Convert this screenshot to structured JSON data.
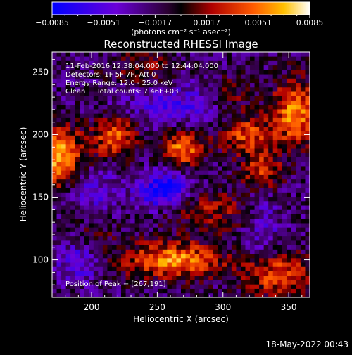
{
  "chart_data": {
    "type": "heatmap",
    "title": "Reconstructed RHESSI Image",
    "xlabel": "Heliocentric X (arcsec)",
    "ylabel": "Heliocentric Y (arcsec)",
    "xlim": [
      170,
      366
    ],
    "ylim": [
      70,
      266
    ],
    "x_ticks": [
      200,
      250,
      300,
      350
    ],
    "y_ticks": [
      100,
      150,
      200,
      250
    ],
    "colorbar": {
      "range": [
        -0.0085,
        0.0085
      ],
      "ticks": [
        "−0.0085",
        "−0.0051",
        "−0.0017",
        "0.0017",
        "0.0051",
        "0.0085"
      ],
      "unit_label": "(photons cm⁻² s⁻¹ asec⁻²)"
    },
    "info_lines": [
      "11-Feb-2016 12:38:04.000 to 12:44:04.000",
      "Detectors: 1F 5F 7F, Att 0",
      "Energy Range: 12.0 - 25.0 keV",
      "Clean     Total counts: 7.46E+03"
    ],
    "peak_label": "Position of Peak = [267,191]",
    "timestamp": "18-May-2022 00:43",
    "grid": false,
    "sources": [
      {
        "x": 175,
        "y": 182,
        "amp": 0.0085,
        "sx": 14,
        "sy": 16
      },
      {
        "x": 218,
        "y": 198,
        "amp": 0.0065,
        "sx": 12,
        "sy": 12
      },
      {
        "x": 270,
        "y": 190,
        "amp": 0.007,
        "sx": 11,
        "sy": 10
      },
      {
        "x": 318,
        "y": 200,
        "amp": 0.0055,
        "sx": 14,
        "sy": 11
      },
      {
        "x": 355,
        "y": 218,
        "amp": 0.0075,
        "sx": 12,
        "sy": 18
      },
      {
        "x": 330,
        "y": 170,
        "amp": 0.0055,
        "sx": 10,
        "sy": 10
      },
      {
        "x": 262,
        "y": 100,
        "amp": 0.0075,
        "sx": 26,
        "sy": 10
      },
      {
        "x": 342,
        "y": 88,
        "amp": 0.006,
        "sx": 18,
        "sy": 12
      },
      {
        "x": 290,
        "y": 140,
        "amp": 0.0035,
        "sx": 25,
        "sy": 12
      },
      {
        "x": 200,
        "y": 125,
        "amp": 0.003,
        "sx": 15,
        "sy": 15
      },
      {
        "x": 238,
        "y": 252,
        "amp": 0.003,
        "sx": 18,
        "sy": 10
      },
      {
        "x": 305,
        "y": 232,
        "amp": 0.003,
        "sx": 14,
        "sy": 10
      },
      {
        "x": 255,
        "y": 155,
        "amp": -0.007,
        "sx": 14,
        "sy": 10
      },
      {
        "x": 200,
        "y": 150,
        "amp": -0.0035,
        "sx": 14,
        "sy": 20
      },
      {
        "x": 265,
        "y": 225,
        "amp": -0.0035,
        "sx": 30,
        "sy": 12
      },
      {
        "x": 190,
        "y": 100,
        "amp": -0.004,
        "sx": 12,
        "sy": 12
      },
      {
        "x": 330,
        "y": 130,
        "amp": -0.003,
        "sx": 10,
        "sy": 20
      }
    ]
  }
}
